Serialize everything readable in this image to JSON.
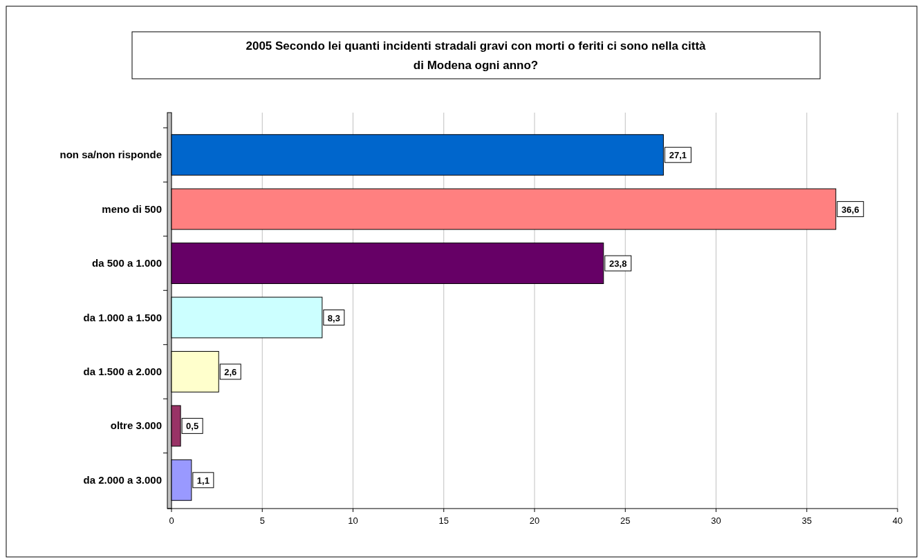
{
  "chart_data": {
    "type": "bar",
    "orientation": "horizontal",
    "title": "2005 Secondo lei quanti incidenti stradali gravi con morti o feriti ci sono nella città di Modena ogni anno?",
    "categories": [
      "non sa/non risponde",
      "meno di 500",
      "da 500 a 1.000",
      "da 1.000 a 1.500",
      "da 1.500 a 2.000",
      "oltre 3.000",
      "da 2.000 a 3.000"
    ],
    "values": [
      27.1,
      36.6,
      23.8,
      8.3,
      2.6,
      0.5,
      1.1
    ],
    "value_labels": [
      "27,1",
      "36,6",
      "23,8",
      "8,3",
      "2,6",
      "0,5",
      "1,1"
    ],
    "colors": [
      "#0066cc",
      "#ff8080",
      "#660066",
      "#ccffff",
      "#ffffcc",
      "#993366",
      "#9999ff"
    ],
    "xlim": [
      0,
      40
    ],
    "xticks": [
      0,
      5,
      10,
      15,
      20,
      25,
      30,
      35,
      40
    ],
    "grid": "x"
  }
}
